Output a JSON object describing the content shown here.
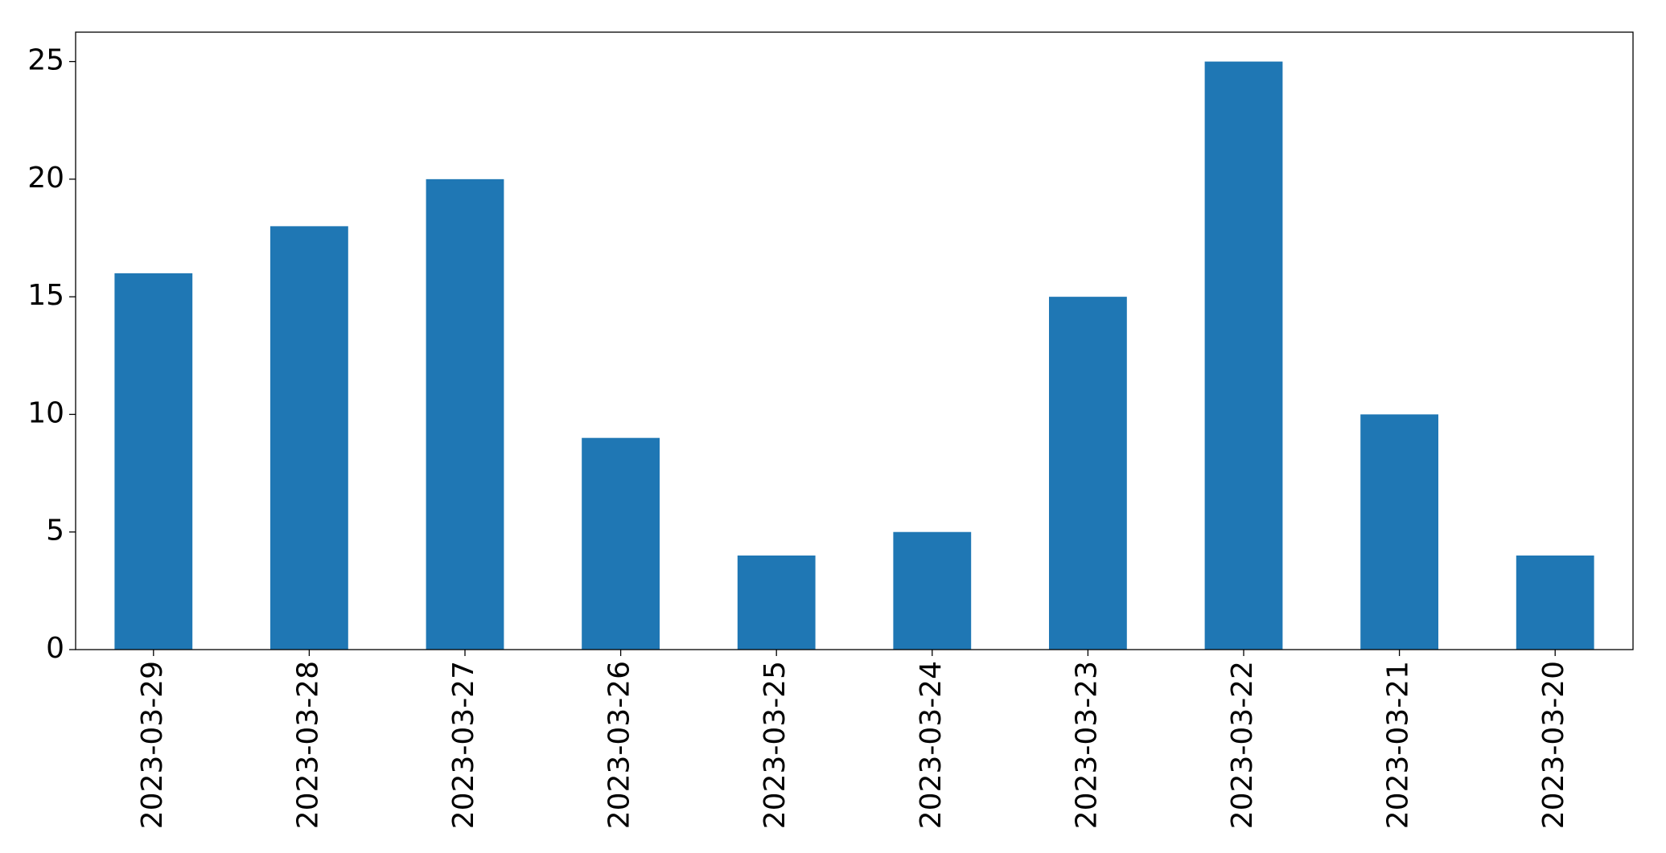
{
  "chart_data": {
    "type": "bar",
    "categories": [
      "2023-03-29",
      "2023-03-28",
      "2023-03-27",
      "2023-03-26",
      "2023-03-25",
      "2023-03-24",
      "2023-03-23",
      "2023-03-22",
      "2023-03-21",
      "2023-03-20"
    ],
    "values": [
      16,
      18,
      20,
      9,
      4,
      5,
      15,
      25,
      10,
      4
    ],
    "color": "#1f77b4",
    "ylim": [
      0,
      26.25
    ],
    "yticks": [
      0,
      5,
      10,
      15,
      20,
      25
    ],
    "grid": false
  }
}
